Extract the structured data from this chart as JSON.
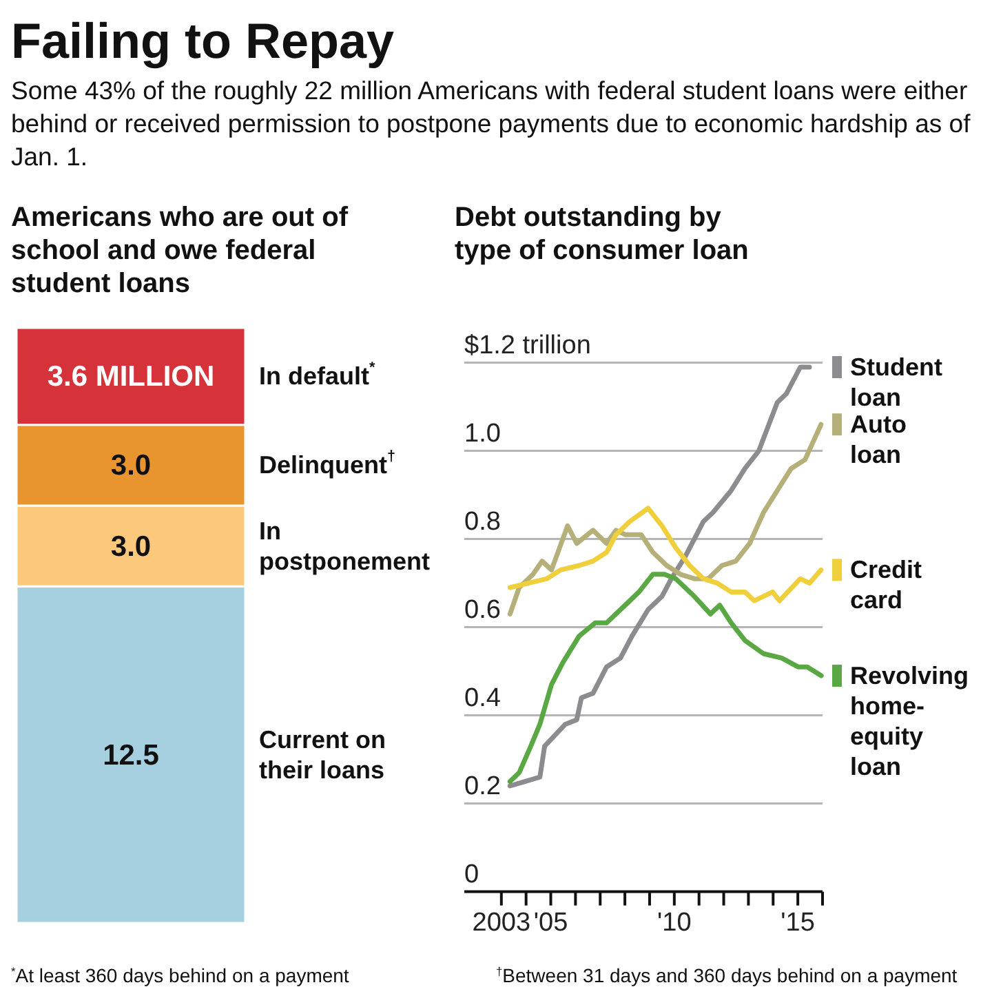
{
  "chart_data": [
    {
      "type": "bar",
      "stacked": true,
      "title": "Americans who are out of school and owe federal student loans",
      "legend": "right",
      "categories": [
        null
      ],
      "annotations": [
        "Failing to Repay",
        "Some 43% of the roughly 22 million Americans with federal student loans were either behind or received permission to postpone payments due to economic hardship as of Jan. 1.",
        "$^{*}$At least 360 days behind on a payment",
        "$^{†}$Between 31 days and 360 days behind on a payment"
      ],
      "series": [
        {
          "name": "Current on their loans",
          "color": "#a6cfe0",
          "values": [
            12.5
          ],
          "value_labels": [
            "12.5"
          ]
        },
        {
          "name": "In postponement",
          "color": "#fcc97c",
          "values": [
            3.0
          ],
          "value_labels": [
            "3.0"
          ]
        },
        {
          "name": "Delinquent$^{†}$",
          "color": "#e8952f",
          "values": [
            3.0
          ],
          "value_labels": [
            "3.0"
          ]
        },
        {
          "name": "In default$^{*}$",
          "color": "#d6323a",
          "values": [
            3.6
          ],
          "value_labels": [
            "3.6 MILLION"
          ]
        }
      ]
    },
    {
      "type": "line",
      "title": "Debt outstanding by type of consumer loan",
      "legend": "right",
      "grid": "y",
      "line_style": "solid",
      "xlim": [
        2001.5,
        2016
      ],
      "xticks": [
        {
          "value": 2003,
          "label": "2003"
        },
        {
          "value": 2004,
          "label": null
        },
        {
          "value": 2005,
          "label": "'05"
        },
        {
          "value": 2006,
          "label": null
        },
        {
          "value": 2007,
          "label": null
        },
        {
          "value": 2008,
          "label": null
        },
        {
          "value": 2009,
          "label": null
        },
        {
          "value": 2010,
          "label": "'10"
        },
        {
          "value": 2011,
          "label": null
        },
        {
          "value": 2012,
          "label": null
        },
        {
          "value": 2013,
          "label": null
        },
        {
          "value": 2014,
          "label": null
        },
        {
          "value": 2015,
          "label": "'15"
        },
        {
          "value": 2016,
          "label": null
        }
      ],
      "ylim": [
        0,
        1.2
      ],
      "yticks": [
        0,
        0.2,
        0.4,
        0.6,
        0.8,
        {
          "value": 1.0,
          "label": "1.0"
        },
        {
          "value": 1.2,
          "label": "$1.2 trillion"
        }
      ],
      "series": [
        {
          "name": "Student loan",
          "color": "#8c8c90",
          "x": [
            2003.35,
            2004.56,
            2004.75,
            2005.59,
            2006.05,
            2006.24,
            2006.71,
            2007.26,
            2007.82,
            2008.29,
            2008.94,
            2009.5,
            2009.88,
            2010.44,
            2011.18,
            2011.56,
            2012.3,
            2012.86,
            2013.42,
            2014.17,
            2014.54,
            2015.1,
            2015.47
          ],
          "values": [
            0.24,
            0.26,
            0.33,
            0.38,
            0.39,
            0.44,
            0.45,
            0.51,
            0.53,
            0.58,
            0.64,
            0.67,
            0.71,
            0.76,
            0.84,
            0.86,
            0.91,
            0.96,
            1.0,
            1.11,
            1.13,
            1.19,
            1.19
          ]
        },
        {
          "name": "Auto loan",
          "color": "#b5b07a",
          "x": [
            2003.35,
            2003.72,
            2004.28,
            2004.65,
            2005.03,
            2005.68,
            2006.05,
            2006.71,
            2007.26,
            2007.64,
            2008.01,
            2008.66,
            2009.13,
            2009.69,
            2010.25,
            2010.81,
            2011.37,
            2011.93,
            2012.49,
            2013.05,
            2013.61,
            2014.17,
            2014.73,
            2015.29,
            2015.94
          ],
          "values": [
            0.63,
            0.69,
            0.72,
            0.75,
            0.73,
            0.83,
            0.79,
            0.82,
            0.79,
            0.82,
            0.81,
            0.81,
            0.77,
            0.74,
            0.72,
            0.71,
            0.71,
            0.74,
            0.75,
            0.79,
            0.86,
            0.91,
            0.96,
            0.98,
            1.06
          ]
        },
        {
          "name": "Credit card",
          "color": "#f0cf3c",
          "x": [
            2003.35,
            2004.09,
            2004.84,
            2005.4,
            2006.15,
            2006.71,
            2007.26,
            2007.64,
            2008.2,
            2008.94,
            2009.5,
            2010.06,
            2010.62,
            2011.18,
            2011.74,
            2012.3,
            2012.86,
            2013.24,
            2013.98,
            2014.26,
            2015.1,
            2015.47,
            2015.94
          ],
          "values": [
            0.69,
            0.7,
            0.71,
            0.73,
            0.74,
            0.75,
            0.77,
            0.81,
            0.84,
            0.87,
            0.83,
            0.78,
            0.74,
            0.71,
            0.7,
            0.68,
            0.68,
            0.66,
            0.68,
            0.66,
            0.71,
            0.7,
            0.73
          ]
        },
        {
          "name": "Revolving home-equity loan",
          "color": "#5aa844",
          "x": [
            2003.35,
            2003.72,
            2004.19,
            2004.56,
            2005.03,
            2005.49,
            2006.15,
            2006.8,
            2007.26,
            2008.01,
            2008.57,
            2009.13,
            2009.6,
            2010.06,
            2010.81,
            2011.46,
            2011.84,
            2012.3,
            2012.86,
            2013.61,
            2014.35,
            2015.01,
            2015.38,
            2015.95
          ],
          "values": [
            0.25,
            0.27,
            0.33,
            0.38,
            0.47,
            0.52,
            0.58,
            0.61,
            0.61,
            0.65,
            0.68,
            0.72,
            0.72,
            0.71,
            0.67,
            0.63,
            0.65,
            0.61,
            0.57,
            0.54,
            0.53,
            0.51,
            0.51,
            0.49
          ]
        }
      ]
    }
  ]
}
